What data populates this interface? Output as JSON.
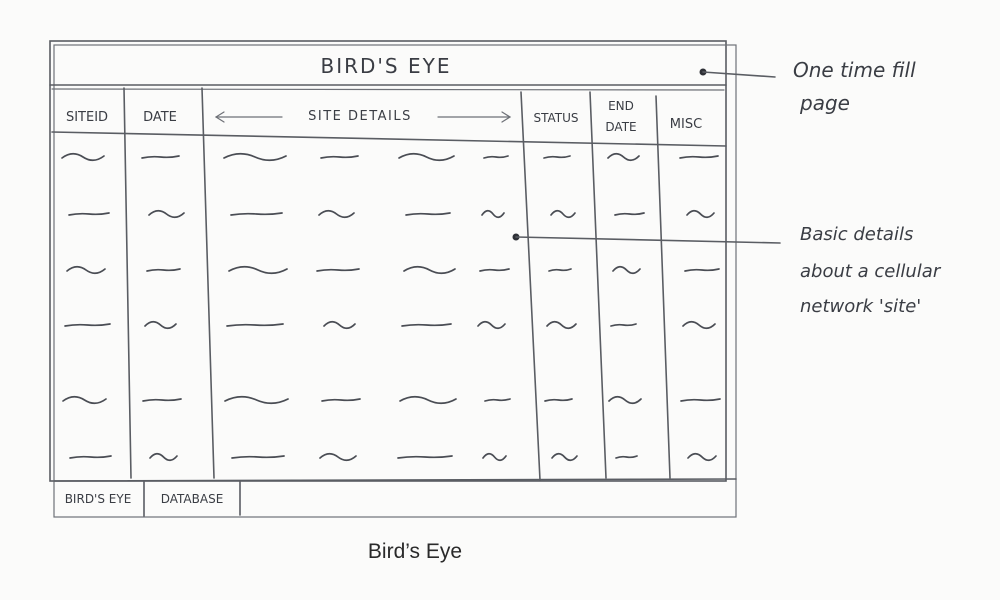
{
  "wireframe": {
    "title": "BIRD'S EYE",
    "columns": {
      "siteid": "SITEID",
      "date": "DATE",
      "site_details": "SITE DETAILS",
      "status": "STATUS",
      "end_date_line1": "END",
      "end_date_line2": "DATE",
      "misc": "MISC"
    },
    "row_count": 6,
    "tabs": [
      "BIRD'S EYE",
      "DATABASE"
    ]
  },
  "annotations": {
    "fill_page": {
      "line1": "One time fill",
      "line2": "page"
    },
    "basic_details": {
      "line1": "Basic details",
      "line2": "about a cellular",
      "line3": "network 'site'"
    }
  },
  "caption": "Bird’s Eye"
}
